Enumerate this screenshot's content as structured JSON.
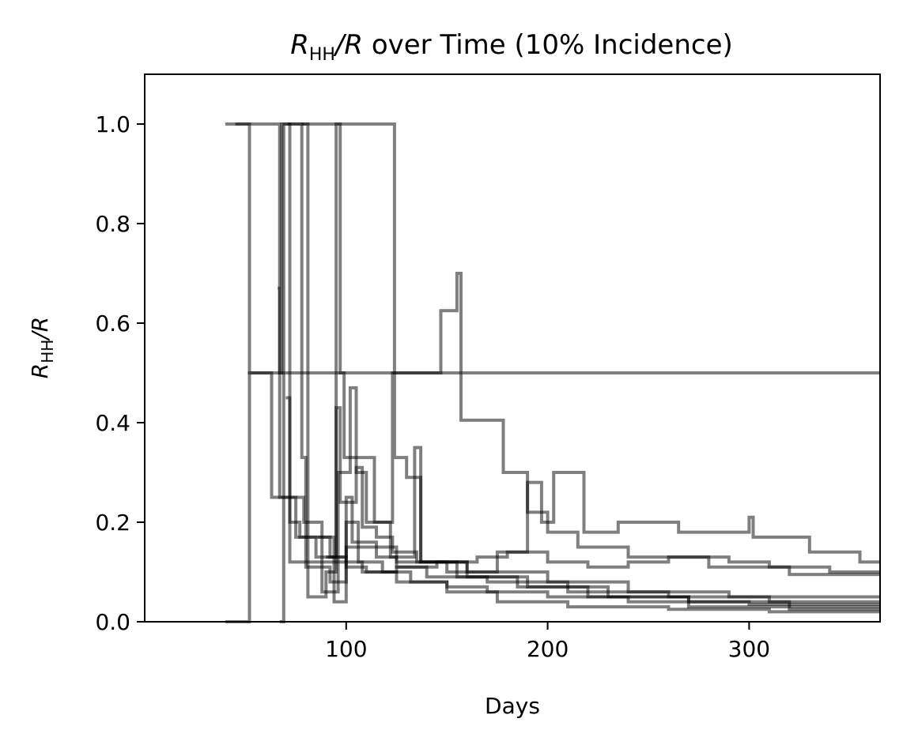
{
  "chart_data": {
    "type": "line",
    "title_parts": {
      "r_symbol": "R",
      "subscript": "HH",
      "slash_r": "/R",
      "rest": " over Time (10% Incidence)"
    },
    "ylabel_parts": {
      "r_symbol": "R",
      "subscript": "HH",
      "slash_r": "/R"
    },
    "xlabel": "Days",
    "xlim": [
      0,
      365
    ],
    "ylim": [
      0,
      1.1
    ],
    "xticks": [
      100,
      200,
      300
    ],
    "xtick_labels": [
      "100",
      "200",
      "300"
    ],
    "yticks": [
      0,
      0.2,
      0.4,
      0.6,
      0.8,
      1.0
    ],
    "ytick_labels": [
      "0.0",
      "0.2",
      "0.4",
      "0.6",
      "0.8",
      "1.0"
    ],
    "grid": false,
    "line_color": "#000000",
    "line_alpha": 0.5,
    "series": [
      {
        "x": [
          40,
          52,
          52,
          365
        ],
        "y": [
          0,
          0,
          0.5,
          0.5
        ]
      },
      {
        "values": [
          [
            40,
            1.0
          ],
          [
            52,
            1.0
          ],
          [
            52,
            0.5
          ],
          [
            63,
            0.5
          ],
          [
            63,
            0.25
          ],
          [
            75,
            0.25
          ],
          [
            75,
            0.17
          ],
          [
            92,
            0.17
          ],
          [
            92,
            0.13
          ],
          [
            100,
            0.13
          ],
          [
            100,
            0.11
          ],
          [
            110,
            0.11
          ],
          [
            110,
            0.1
          ],
          [
            125,
            0.1
          ],
          [
            125,
            0.11
          ],
          [
            145,
            0.11
          ],
          [
            145,
            0.12
          ],
          [
            165,
            0.12
          ],
          [
            165,
            0.13
          ],
          [
            180,
            0.13
          ],
          [
            180,
            0.14
          ],
          [
            200,
            0.14
          ],
          [
            200,
            0.12
          ],
          [
            220,
            0.12
          ],
          [
            220,
            0.11
          ],
          [
            240,
            0.11
          ],
          [
            240,
            0.12
          ],
          [
            260,
            0.12
          ],
          [
            260,
            0.13
          ],
          [
            290,
            0.13
          ],
          [
            290,
            0.12
          ],
          [
            310,
            0.12
          ],
          [
            310,
            0.11
          ],
          [
            340,
            0.11
          ],
          [
            340,
            0.1
          ],
          [
            365,
            0.1
          ]
        ]
      },
      {
        "values": [
          [
            45,
            1.0
          ],
          [
            67,
            1.0
          ],
          [
            67,
            0.25
          ],
          [
            79,
            0.25
          ],
          [
            79,
            0.2
          ],
          [
            88,
            0.2
          ],
          [
            88,
            0.12
          ],
          [
            100,
            0.12
          ],
          [
            100,
            0.15
          ],
          [
            106,
            0.15
          ],
          [
            106,
            0.12
          ],
          [
            118,
            0.12
          ],
          [
            118,
            0.1
          ],
          [
            132,
            0.1
          ],
          [
            132,
            0.08
          ],
          [
            150,
            0.08
          ],
          [
            150,
            0.07
          ],
          [
            170,
            0.07
          ],
          [
            170,
            0.06
          ],
          [
            200,
            0.06
          ],
          [
            200,
            0.05
          ],
          [
            240,
            0.05
          ],
          [
            240,
            0.04
          ],
          [
            300,
            0.04
          ],
          [
            300,
            0.035
          ],
          [
            365,
            0.035
          ]
        ]
      },
      {
        "values": [
          [
            67,
            0.0
          ],
          [
            69,
            0.0
          ],
          [
            69,
            1.0
          ],
          [
            72,
            1.0
          ],
          [
            72,
            0.2
          ],
          [
            77,
            0.2
          ],
          [
            77,
            0.17
          ],
          [
            85,
            0.17
          ],
          [
            85,
            0.13
          ],
          [
            95,
            0.13
          ],
          [
            95,
            0.43
          ],
          [
            97,
            0.43
          ],
          [
            97,
            0.24
          ],
          [
            105,
            0.24
          ],
          [
            105,
            0.31
          ],
          [
            108,
            0.31
          ],
          [
            108,
            0.19
          ],
          [
            115,
            0.19
          ],
          [
            115,
            0.17
          ],
          [
            123,
            0.17
          ],
          [
            123,
            0.14
          ],
          [
            135,
            0.14
          ],
          [
            135,
            0.12
          ],
          [
            160,
            0.12
          ],
          [
            160,
            0.1
          ],
          [
            200,
            0.1
          ],
          [
            200,
            0.08
          ],
          [
            240,
            0.08
          ],
          [
            240,
            0.06
          ],
          [
            290,
            0.06
          ],
          [
            290,
            0.05
          ],
          [
            365,
            0.05
          ]
        ]
      },
      {
        "values": [
          [
            66,
            0.67
          ],
          [
            67,
            0.67
          ],
          [
            67,
            0.5
          ],
          [
            68,
            0.5
          ],
          [
            68,
            1.0
          ],
          [
            78,
            1.0
          ],
          [
            78,
            0.33
          ],
          [
            80,
            0.33
          ],
          [
            80,
            0.11
          ],
          [
            92,
            0.11
          ],
          [
            92,
            0.08
          ],
          [
            100,
            0.08
          ],
          [
            100,
            0.25
          ],
          [
            103,
            0.25
          ],
          [
            103,
            0.16
          ],
          [
            115,
            0.16
          ],
          [
            115,
            0.13
          ],
          [
            125,
            0.13
          ],
          [
            125,
            0.11
          ],
          [
            140,
            0.11
          ],
          [
            140,
            0.09
          ],
          [
            170,
            0.09
          ],
          [
            170,
            0.08
          ],
          [
            210,
            0.08
          ],
          [
            210,
            0.06
          ],
          [
            260,
            0.06
          ],
          [
            260,
            0.05
          ],
          [
            310,
            0.05
          ],
          [
            310,
            0.04
          ],
          [
            365,
            0.04
          ]
        ]
      },
      {
        "values": [
          [
            71,
            1.0
          ],
          [
            81,
            1.0
          ],
          [
            81,
            0.05
          ],
          [
            90,
            0.05
          ],
          [
            90,
            0.1
          ],
          [
            95,
            0.1
          ],
          [
            95,
            1.0
          ],
          [
            97,
            1.0
          ],
          [
            97,
            0.5
          ],
          [
            99,
            0.5
          ],
          [
            99,
            0.33
          ],
          [
            114,
            0.33
          ],
          [
            114,
            0.2
          ],
          [
            123,
            0.2
          ],
          [
            123,
            0.5
          ],
          [
            124,
            0.5
          ],
          [
            124,
            0.33
          ],
          [
            130,
            0.33
          ],
          [
            130,
            0.29
          ],
          [
            137,
            0.29
          ],
          [
            137,
            0.12
          ],
          [
            160,
            0.12
          ],
          [
            160,
            0.09
          ],
          [
            190,
            0.09
          ],
          [
            190,
            0.07
          ],
          [
            230,
            0.07
          ],
          [
            230,
            0.05
          ],
          [
            270,
            0.05
          ],
          [
            270,
            0.04
          ],
          [
            320,
            0.04
          ],
          [
            320,
            0.03
          ],
          [
            365,
            0.03
          ]
        ]
      },
      {
        "values": [
          [
            78,
            1.0
          ],
          [
            124,
            1.0
          ],
          [
            124,
            0.5
          ],
          [
            147,
            0.5
          ],
          [
            147,
            0.625
          ],
          [
            155,
            0.625
          ],
          [
            155,
            0.7
          ],
          [
            157,
            0.7
          ],
          [
            157,
            0.405
          ],
          [
            178,
            0.405
          ],
          [
            178,
            0.3
          ],
          [
            190,
            0.3
          ],
          [
            190,
            0.22
          ],
          [
            200,
            0.22
          ],
          [
            200,
            0.18
          ],
          [
            215,
            0.18
          ],
          [
            215,
            0.15
          ],
          [
            240,
            0.15
          ],
          [
            240,
            0.13
          ],
          [
            280,
            0.13
          ],
          [
            280,
            0.11
          ],
          [
            320,
            0.11
          ],
          [
            320,
            0.095
          ],
          [
            365,
            0.095
          ]
        ]
      },
      {
        "values": [
          [
            70,
            0.45
          ],
          [
            72,
            0.45
          ],
          [
            72,
            0.12
          ],
          [
            88,
            0.12
          ],
          [
            88,
            0.06
          ],
          [
            96,
            0.06
          ],
          [
            96,
            0.3
          ],
          [
            102,
            0.3
          ],
          [
            102,
            0.47
          ],
          [
            105,
            0.47
          ],
          [
            105,
            0.3
          ],
          [
            110,
            0.3
          ],
          [
            110,
            0.2
          ],
          [
            122,
            0.2
          ],
          [
            122,
            0.13
          ],
          [
            134,
            0.13
          ],
          [
            134,
            0.35
          ],
          [
            137,
            0.35
          ],
          [
            137,
            0.12
          ],
          [
            155,
            0.12
          ],
          [
            155,
            0.09
          ],
          [
            185,
            0.09
          ],
          [
            185,
            0.07
          ],
          [
            220,
            0.07
          ],
          [
            220,
            0.05
          ],
          [
            270,
            0.05
          ],
          [
            270,
            0.03
          ],
          [
            320,
            0.03
          ],
          [
            320,
            0.025
          ],
          [
            365,
            0.025
          ]
        ]
      },
      {
        "values": [
          [
            86,
            0.17
          ],
          [
            94,
            0.17
          ],
          [
            94,
            0.04
          ],
          [
            100,
            0.04
          ],
          [
            100,
            0.12
          ],
          [
            108,
            0.12
          ],
          [
            108,
            0.1
          ],
          [
            125,
            0.1
          ],
          [
            125,
            0.08
          ],
          [
            150,
            0.08
          ],
          [
            150,
            0.06
          ],
          [
            175,
            0.06
          ],
          [
            175,
            0.04
          ],
          [
            210,
            0.04
          ],
          [
            210,
            0.03
          ],
          [
            260,
            0.03
          ],
          [
            260,
            0.025
          ],
          [
            310,
            0.025
          ],
          [
            310,
            0.02
          ],
          [
            365,
            0.02
          ]
        ]
      },
      {
        "values": [
          [
            90,
            0.13
          ],
          [
            100,
            0.13
          ],
          [
            100,
            0.2
          ],
          [
            106,
            0.2
          ],
          [
            106,
            0.15
          ],
          [
            125,
            0.15
          ],
          [
            125,
            0.12
          ],
          [
            150,
            0.12
          ],
          [
            150,
            0.1
          ],
          [
            175,
            0.1
          ],
          [
            175,
            0.14
          ],
          [
            190,
            0.14
          ],
          [
            190,
            0.28
          ],
          [
            197,
            0.28
          ],
          [
            197,
            0.2
          ],
          [
            203,
            0.2
          ],
          [
            203,
            0.3
          ],
          [
            218,
            0.3
          ],
          [
            218,
            0.18
          ],
          [
            235,
            0.18
          ],
          [
            235,
            0.2
          ],
          [
            265,
            0.2
          ],
          [
            265,
            0.18
          ],
          [
            300,
            0.18
          ],
          [
            300,
            0.21
          ],
          [
            302,
            0.21
          ],
          [
            302,
            0.17
          ],
          [
            330,
            0.17
          ],
          [
            330,
            0.14
          ],
          [
            355,
            0.14
          ],
          [
            355,
            0.12
          ],
          [
            365,
            0.12
          ]
        ]
      }
    ]
  }
}
